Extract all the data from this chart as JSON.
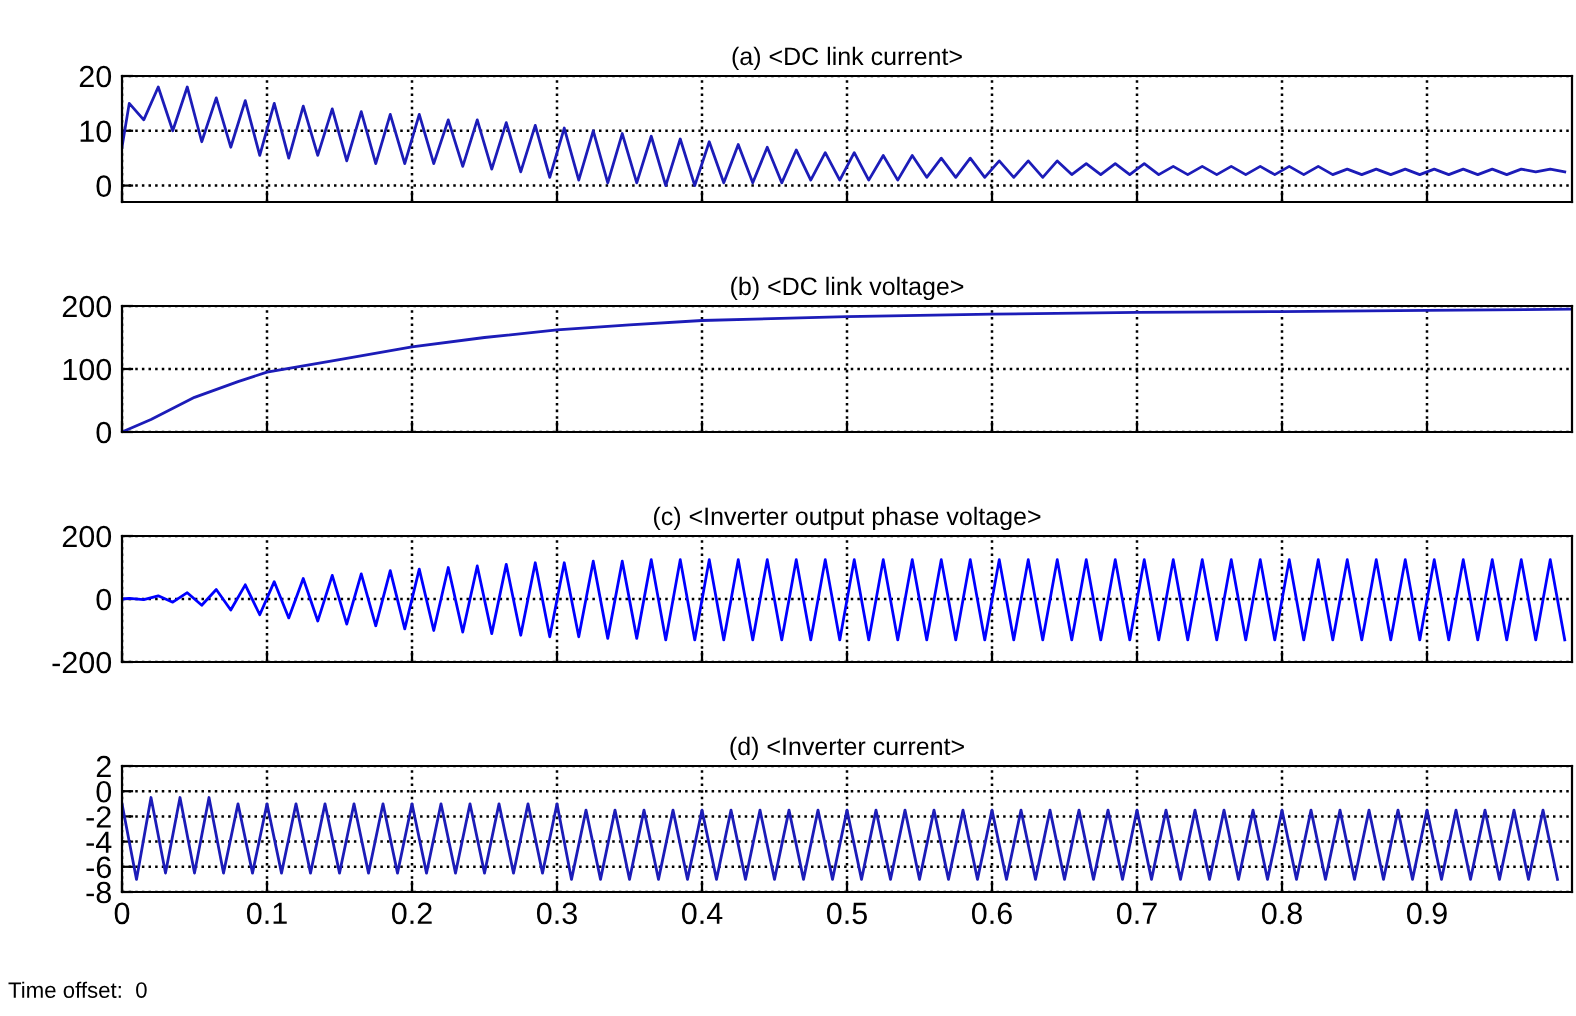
{
  "chart_data": [
    {
      "type": "line",
      "title": "(a) <DC link current>",
      "xlim": [
        0,
        1
      ],
      "xticks": [
        0,
        0.1,
        0.2,
        0.3,
        0.4,
        0.5,
        0.6,
        0.7,
        0.8,
        0.9
      ],
      "ylim": [
        -3,
        20
      ],
      "yticks": [
        0,
        10,
        20
      ],
      "grid": true,
      "tick_labels": "y",
      "series": [
        {
          "color": "#1c1cb8",
          "x": [
            0,
            0.005,
            0.015,
            0.025,
            0.035,
            0.045,
            0.055,
            0.065,
            0.075,
            0.085,
            0.095,
            0.105,
            0.115,
            0.125,
            0.135,
            0.145,
            0.155,
            0.165,
            0.175,
            0.185,
            0.195,
            0.205,
            0.215,
            0.225,
            0.235,
            0.245,
            0.255,
            0.265,
            0.275,
            0.285,
            0.295,
            0.305,
            0.315,
            0.325,
            0.335,
            0.345,
            0.355,
            0.365,
            0.375,
            0.385,
            0.395,
            0.405,
            0.415,
            0.425,
            0.435,
            0.445,
            0.455,
            0.465,
            0.475,
            0.485,
            0.495,
            0.505,
            0.515,
            0.525,
            0.535,
            0.545,
            0.555,
            0.565,
            0.575,
            0.585,
            0.595,
            0.605,
            0.615,
            0.625,
            0.635,
            0.645,
            0.655,
            0.665,
            0.675,
            0.685,
            0.695,
            0.705,
            0.715,
            0.725,
            0.735,
            0.745,
            0.755,
            0.765,
            0.775,
            0.785,
            0.795,
            0.805,
            0.815,
            0.825,
            0.835,
            0.845,
            0.855,
            0.865,
            0.875,
            0.885,
            0.895,
            0.905,
            0.915,
            0.925,
            0.935,
            0.945,
            0.955,
            0.965,
            0.975,
            0.985,
            0.995
          ],
          "values": [
            7,
            15,
            12,
            18,
            10,
            18,
            8,
            16,
            7,
            15.5,
            5.5,
            15,
            5,
            14.5,
            5.5,
            14,
            4.5,
            13.5,
            4,
            13,
            4,
            13,
            4,
            12,
            3.5,
            12,
            3,
            11.5,
            2.5,
            11,
            1.5,
            10.5,
            1,
            10,
            0.5,
            9.5,
            0.5,
            9,
            0,
            8.5,
            0,
            8,
            0.5,
            7.5,
            0.5,
            7,
            0.5,
            6.5,
            1,
            6,
            1,
            6,
            1,
            5.5,
            1,
            5.5,
            1.5,
            5,
            1.5,
            5,
            1.5,
            4.5,
            1.5,
            4.5,
            1.5,
            4.5,
            2,
            4,
            2,
            4,
            2,
            4,
            2,
            3.5,
            2,
            3.5,
            2,
            3.5,
            2,
            3.5,
            2,
            3.5,
            2,
            3.5,
            2,
            3,
            2,
            3,
            2,
            3,
            2,
            3,
            2,
            3,
            2,
            3,
            2,
            3,
            2.5,
            3,
            2.5
          ]
        }
      ]
    },
    {
      "type": "line",
      "title": "(b) <DC link voltage>",
      "xlim": [
        0,
        1
      ],
      "xticks": [
        0,
        0.1,
        0.2,
        0.3,
        0.4,
        0.5,
        0.6,
        0.7,
        0.8,
        0.9
      ],
      "ylim": [
        0,
        200
      ],
      "yticks": [
        0,
        100,
        200
      ],
      "grid": true,
      "tick_labels": "y",
      "series": [
        {
          "color": "#1c1cb8",
          "x": [
            0,
            0.02,
            0.05,
            0.08,
            0.1,
            0.15,
            0.2,
            0.25,
            0.3,
            0.35,
            0.4,
            0.5,
            0.6,
            0.7,
            0.8,
            0.9,
            1.0
          ],
          "values": [
            0,
            20,
            55,
            80,
            95,
            115,
            135,
            150,
            162,
            170,
            177,
            183,
            187,
            190,
            191,
            193,
            195
          ]
        }
      ]
    },
    {
      "type": "line",
      "title": "(c) <Inverter output phase voltage>",
      "xlim": [
        0,
        1
      ],
      "xticks": [
        0,
        0.1,
        0.2,
        0.3,
        0.4,
        0.5,
        0.6,
        0.7,
        0.8,
        0.9
      ],
      "ylim": [
        -200,
        200
      ],
      "yticks": [
        -200,
        0,
        200
      ],
      "grid": true,
      "tick_labels": "y",
      "series": [
        {
          "color": "#0000ff",
          "x": [
            0,
            0.005,
            0.015,
            0.025,
            0.035,
            0.045,
            0.055,
            0.065,
            0.075,
            0.085,
            0.095,
            0.105,
            0.115,
            0.125,
            0.135,
            0.145,
            0.155,
            0.165,
            0.175,
            0.185,
            0.195,
            0.205,
            0.215,
            0.225,
            0.235,
            0.245,
            0.255,
            0.265,
            0.275,
            0.285,
            0.295,
            0.305,
            0.315,
            0.325,
            0.335,
            0.345,
            0.355,
            0.365,
            0.375,
            0.385,
            0.395,
            0.405,
            0.415,
            0.425,
            0.435,
            0.445,
            0.455,
            0.465,
            0.475,
            0.485,
            0.495,
            0.505,
            0.515,
            0.525,
            0.535,
            0.545,
            0.555,
            0.565,
            0.575,
            0.585,
            0.595,
            0.605,
            0.615,
            0.625,
            0.635,
            0.645,
            0.655,
            0.665,
            0.675,
            0.685,
            0.695,
            0.705,
            0.715,
            0.725,
            0.735,
            0.745,
            0.755,
            0.765,
            0.775,
            0.785,
            0.795,
            0.805,
            0.815,
            0.825,
            0.835,
            0.845,
            0.855,
            0.865,
            0.875,
            0.885,
            0.895,
            0.905,
            0.915,
            0.925,
            0.935,
            0.945,
            0.955,
            0.965,
            0.975,
            0.985,
            0.995
          ],
          "values": [
            0,
            2,
            -2,
            10,
            -10,
            20,
            -20,
            30,
            -35,
            45,
            -50,
            55,
            -60,
            65,
            -70,
            75,
            -80,
            80,
            -85,
            90,
            -95,
            95,
            -100,
            100,
            -105,
            105,
            -110,
            110,
            -115,
            115,
            -120,
            115,
            -120,
            120,
            -125,
            120,
            -125,
            125,
            -130,
            125,
            -130,
            125,
            -130,
            125,
            -130,
            125,
            -130,
            125,
            -130,
            125,
            -130,
            125,
            -130,
            125,
            -130,
            125,
            -130,
            125,
            -130,
            125,
            -130,
            125,
            -130,
            125,
            -130,
            125,
            -130,
            125,
            -130,
            125,
            -130,
            125,
            -130,
            125,
            -130,
            125,
            -130,
            125,
            -130,
            125,
            -130,
            125,
            -130,
            125,
            -130,
            125,
            -130,
            125,
            -130,
            125,
            -130,
            125,
            -130,
            125,
            -130,
            125,
            -130,
            125,
            -130,
            125,
            -130
          ]
        }
      ]
    },
    {
      "type": "line",
      "title": "(d) <Inverter current>",
      "xlim": [
        0,
        1
      ],
      "xticks": [
        0,
        0.1,
        0.2,
        0.3,
        0.4,
        0.5,
        0.6,
        0.7,
        0.8,
        0.9
      ],
      "ylim": [
        -8,
        2
      ],
      "yticks": [
        -8,
        -6,
        -4,
        -2,
        0,
        2
      ],
      "grid": true,
      "annotations": [
        "Time offset:  0"
      ],
      "series": [
        {
          "color": "#1c1cb8",
          "x": [
            0,
            0.01,
            0.02,
            0.03,
            0.04,
            0.05,
            0.06,
            0.07,
            0.08,
            0.09,
            0.1,
            0.11,
            0.12,
            0.13,
            0.14,
            0.15,
            0.16,
            0.17,
            0.18,
            0.19,
            0.2,
            0.21,
            0.22,
            0.23,
            0.24,
            0.25,
            0.26,
            0.27,
            0.28,
            0.29,
            0.3,
            0.31,
            0.32,
            0.33,
            0.34,
            0.35,
            0.36,
            0.37,
            0.38,
            0.39,
            0.4,
            0.41,
            0.42,
            0.43,
            0.44,
            0.45,
            0.46,
            0.47,
            0.48,
            0.49,
            0.5,
            0.51,
            0.52,
            0.53,
            0.54,
            0.55,
            0.56,
            0.57,
            0.58,
            0.59,
            0.6,
            0.61,
            0.62,
            0.63,
            0.64,
            0.65,
            0.66,
            0.67,
            0.68,
            0.69,
            0.7,
            0.71,
            0.72,
            0.73,
            0.74,
            0.75,
            0.76,
            0.77,
            0.78,
            0.79,
            0.8,
            0.81,
            0.82,
            0.83,
            0.84,
            0.85,
            0.86,
            0.87,
            0.88,
            0.89,
            0.9,
            0.91,
            0.92,
            0.93,
            0.94,
            0.95,
            0.96,
            0.97,
            0.98,
            0.99
          ],
          "values": [
            -1,
            -7,
            -0.5,
            -6.5,
            -0.5,
            -6.5,
            -0.5,
            -6.5,
            -1,
            -6.5,
            -1,
            -6.5,
            -1,
            -6.5,
            -1,
            -6.5,
            -1,
            -6.5,
            -1,
            -6.5,
            -1,
            -6.5,
            -1,
            -6.5,
            -1,
            -6.5,
            -1,
            -6.5,
            -1,
            -6.5,
            -1,
            -7,
            -1.5,
            -7,
            -1.5,
            -7,
            -1.5,
            -7,
            -1.5,
            -7,
            -1.5,
            -7,
            -1.5,
            -7,
            -1.5,
            -7,
            -1.5,
            -7,
            -1.5,
            -7,
            -1.5,
            -7,
            -1.5,
            -7,
            -1.5,
            -7,
            -1.5,
            -7,
            -1.5,
            -7,
            -1.5,
            -7,
            -1.5,
            -7,
            -1.5,
            -7,
            -1.5,
            -7,
            -1.5,
            -7,
            -1.5,
            -7,
            -1.5,
            -7,
            -1.5,
            -7,
            -1.5,
            -7,
            -1.5,
            -7,
            -1.5,
            -7,
            -1.5,
            -7,
            -1.5,
            -7,
            -1.5,
            -7,
            -1.5,
            -7,
            -1.5,
            -7,
            -1.5,
            -7,
            -1.5,
            -7,
            -1.5,
            -7,
            -1.5,
            -7
          ]
        }
      ]
    }
  ]
}
